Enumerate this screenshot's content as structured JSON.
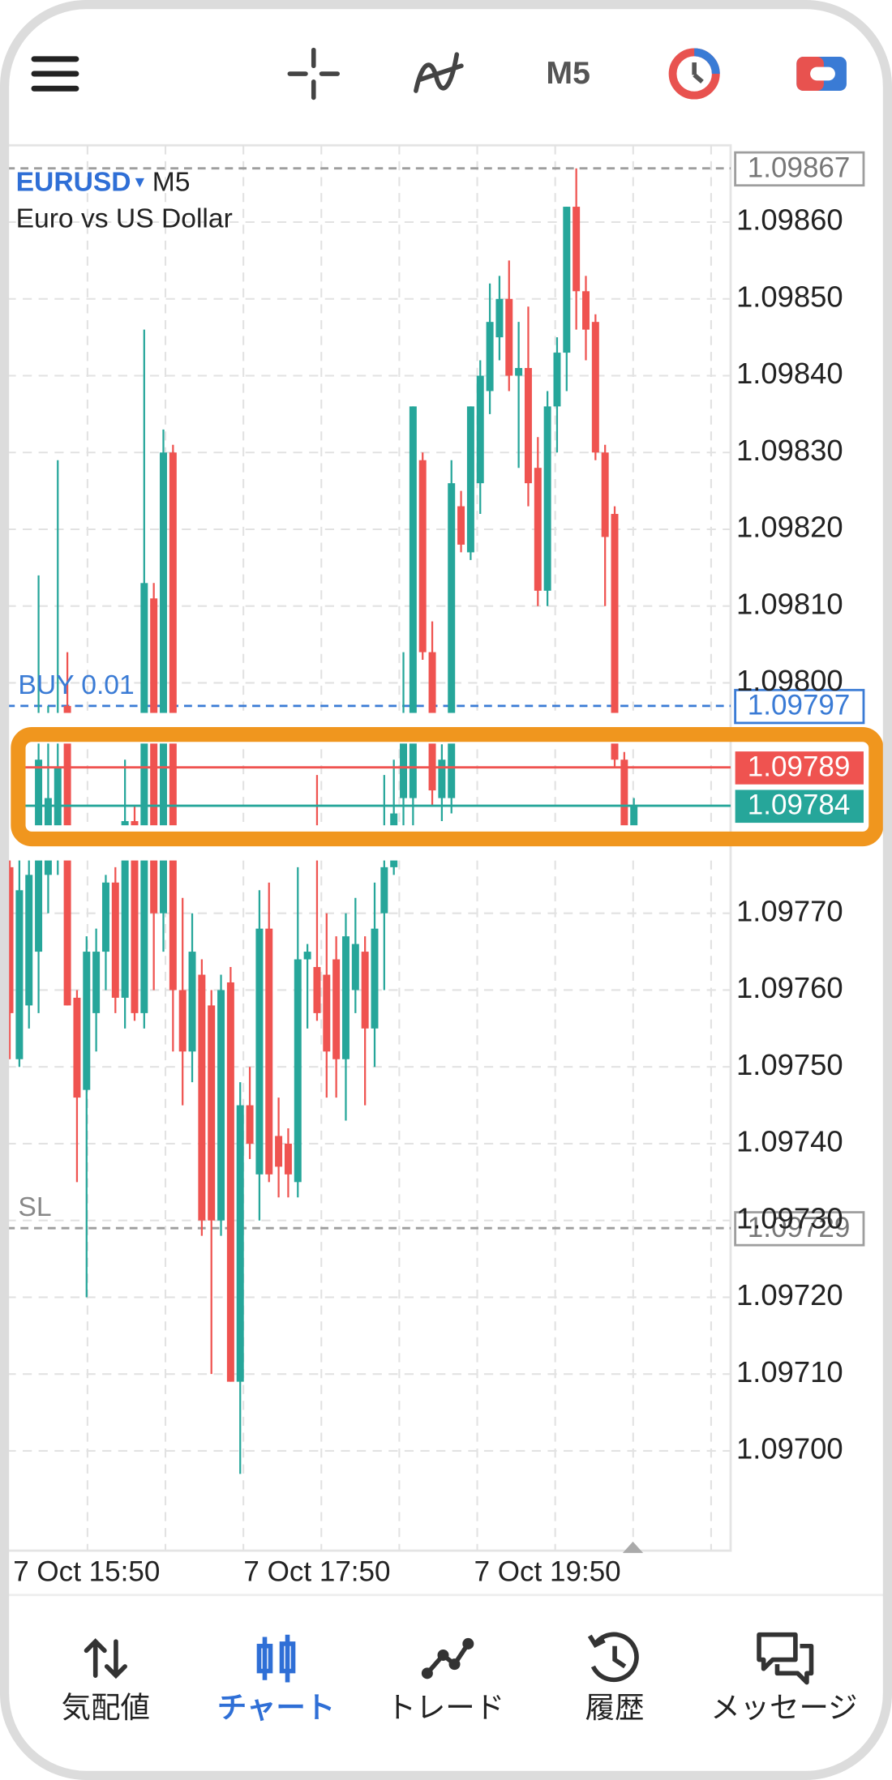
{
  "header": {
    "symbol": "EURUSD",
    "timeframe": "M5",
    "description": "Euro vs US Dollar"
  },
  "toolbar": {
    "timeframe": "M5"
  },
  "nav": [
    "気配値",
    "チャート",
    "トレード",
    "履歴",
    "メッセージ"
  ],
  "chart_data": {
    "type": "candlestick",
    "up_color": "#26a69a",
    "down_color": "#ef5350",
    "categories": [
      null,
      null,
      null,
      null,
      null,
      null,
      null,
      null,
      "7 Oct 15:50",
      null,
      null,
      null,
      null,
      null,
      null,
      null,
      null,
      null,
      null,
      null,
      null,
      null,
      null,
      null,
      null,
      null,
      null,
      null,
      null,
      null,
      null,
      null,
      "7 Oct 17:50",
      null,
      null,
      null,
      null,
      null,
      null,
      null,
      null,
      null,
      null,
      null,
      null,
      null,
      null,
      null,
      null,
      null,
      null,
      null,
      null,
      null,
      null,
      null,
      "7 Oct 19:50",
      null,
      null,
      null,
      null,
      null,
      null,
      null,
      null,
      null
    ],
    "open": [
      1.09776,
      1.09751,
      1.09758,
      1.09765,
      1.09775,
      1.0978,
      1.09797,
      1.09759,
      1.09747,
      1.09757,
      1.09765,
      1.09774,
      1.09759,
      1.09782,
      1.09757,
      1.09811,
      1.0977,
      1.0983,
      1.0976,
      1.09752,
      1.09762,
      1.09758,
      1.0973,
      1.09761,
      1.09709,
      1.09745,
      1.09736,
      1.09768,
      1.09741,
      1.0974,
      1.09735,
      1.09764,
      1.09763,
      1.09762,
      1.09764,
      1.09751,
      1.0976,
      1.09765,
      1.09755,
      1.0977,
      1.09776,
      1.09785,
      1.09785,
      1.09829,
      1.09804,
      1.09785,
      1.09785,
      1.09823,
      1.09817,
      1.09826,
      1.09838,
      1.09845,
      1.0985,
      1.0984,
      1.09841,
      1.09828,
      1.09812,
      1.09836,
      1.09843,
      1.09862,
      1.09851,
      1.09847,
      1.0983,
      1.09822,
      1.0979,
      1.09781
    ],
    "high": [
      1.09778,
      1.09779,
      1.09781,
      1.09814,
      1.09797,
      1.09829,
      1.09804,
      1.0976,
      1.09767,
      1.09768,
      1.09775,
      1.09776,
      1.0979,
      1.09784,
      1.09846,
      1.09813,
      1.09833,
      1.09831,
      1.09772,
      1.0977,
      1.09764,
      1.0976,
      1.09762,
      1.09763,
      1.09748,
      1.0975,
      1.09773,
      1.09774,
      1.09746,
      1.09742,
      1.09776,
      1.09766,
      1.09788,
      1.0977,
      1.09767,
      1.0977,
      1.09772,
      1.09767,
      1.09774,
      1.09788,
      1.0979,
      1.09804,
      1.09836,
      1.0983,
      1.09808,
      1.09792,
      1.09829,
      1.09825,
      1.09836,
      1.09842,
      1.09852,
      1.09853,
      1.09855,
      1.09847,
      1.09849,
      1.09832,
      1.09838,
      1.09845,
      1.09862,
      1.09867,
      1.09853,
      1.09848,
      1.09831,
      1.09823,
      1.09791,
      1.09785
    ],
    "low": [
      1.09751,
      1.0975,
      1.09755,
      1.09757,
      1.0977,
      1.09775,
      1.09758,
      1.09735,
      1.0972,
      1.09752,
      1.0976,
      1.09757,
      1.09755,
      1.09756,
      1.09755,
      1.0976,
      1.09765,
      1.09752,
      1.09745,
      1.09748,
      1.09728,
      1.0971,
      1.09728,
      1.09709,
      1.09697,
      1.09738,
      1.0973,
      1.09735,
      1.09733,
      1.09733,
      1.09733,
      1.09755,
      1.09756,
      1.09746,
      1.09746,
      1.09743,
      1.09757,
      1.09745,
      1.0975,
      1.0976,
      1.09775,
      1.0978,
      1.09778,
      1.09803,
      1.09784,
      1.09782,
      1.09783,
      1.09817,
      1.09816,
      1.09822,
      1.09835,
      1.09842,
      1.09838,
      1.09828,
      1.09823,
      1.0981,
      1.0981,
      1.0983,
      1.09838,
      1.09846,
      1.09842,
      1.09829,
      1.0981,
      1.09789,
      1.09781,
      1.09781
    ],
    "close": [
      1.09757,
      1.09773,
      1.09775,
      1.0979,
      1.09785,
      1.09789,
      1.09758,
      1.09746,
      1.09765,
      1.09765,
      1.09774,
      1.09759,
      1.09782,
      1.09757,
      1.09813,
      1.0977,
      1.0983,
      1.0976,
      1.09752,
      1.09765,
      1.0973,
      1.0973,
      1.0976,
      1.09709,
      1.09745,
      1.0974,
      1.09768,
      1.09736,
      1.09737,
      1.09736,
      1.09764,
      1.09765,
      1.09757,
      1.09752,
      1.09751,
      1.09767,
      1.09766,
      1.09755,
      1.09768,
      1.09776,
      1.09783,
      1.09795,
      1.09836,
      1.09804,
      1.09786,
      1.0979,
      1.09826,
      1.09818,
      1.09836,
      1.0984,
      1.09847,
      1.0985,
      1.0984,
      1.09841,
      1.09826,
      1.09812,
      1.09836,
      1.09843,
      1.09862,
      1.09851,
      1.09846,
      1.0983,
      1.09819,
      1.0979,
      1.09781,
      1.09784
    ],
    "ylim": [
      1.09687,
      1.0987
    ],
    "yticks": [
      {
        "value": 1.0986,
        "label": "1.09860"
      },
      {
        "value": 1.0985,
        "label": "1.09850"
      },
      {
        "value": 1.0984,
        "label": "1.09840"
      },
      {
        "value": 1.0983,
        "label": "1.09830"
      },
      {
        "value": 1.0982,
        "label": "1.09820"
      },
      {
        "value": 1.0981,
        "label": "1.09810"
      },
      {
        "value": 1.098,
        "label": "1.09800"
      },
      {
        "value": 1.0977,
        "label": "1.09770"
      },
      {
        "value": 1.0976,
        "label": "1.09760"
      },
      {
        "value": 1.0975,
        "label": "1.09750"
      },
      {
        "value": 1.0974,
        "label": "1.09740"
      },
      {
        "value": 1.0973,
        "label": "1.09730"
      },
      {
        "value": 1.0972,
        "label": "1.09720"
      },
      {
        "value": 1.0971,
        "label": "1.09710"
      },
      {
        "value": 1.097,
        "label": "1.09700"
      }
    ],
    "grid": true,
    "lines": [
      {
        "value": 1.09867,
        "color": "#9e9e9e",
        "style": "dashed"
      },
      {
        "name": "BUY 0.01",
        "value": 1.09797,
        "color": "#3a7bd5",
        "style": "dashed"
      },
      {
        "name": "SL",
        "value": 1.09729,
        "color": "#9e9e9e",
        "style": "dashed"
      },
      {
        "value": 1.09789,
        "color": "#ef5350",
        "style": "solid"
      },
      {
        "value": 1.09784,
        "color": "#26a69a",
        "style": "solid"
      }
    ]
  }
}
